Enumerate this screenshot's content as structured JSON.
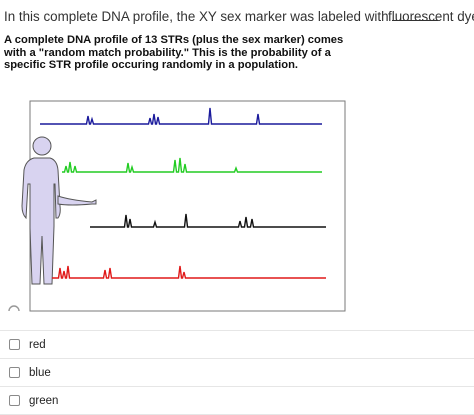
{
  "question": {
    "text_before": "In this complete DNA profile, the XY sex marker was labeled with",
    "text_after": "fluorescent dye."
  },
  "figure": {
    "caption": "A complete DNA profile of 13 STRs (plus the sex marker) comes with a \"random match probability.\"  This is the probability of a specific STR profile occuring randomly in a population.",
    "traces": [
      {
        "name": "blue-trace",
        "color": "#1a1a9c"
      },
      {
        "name": "green-trace",
        "color": "#22cc22"
      },
      {
        "name": "black-trace",
        "color": "#111111"
      },
      {
        "name": "red-trace",
        "color": "#e01818"
      }
    ],
    "figure_outline_color": "#7a7a7a",
    "human_fill_color": "#d8d3f0"
  },
  "choices": [
    {
      "label": "red"
    },
    {
      "label": "blue"
    },
    {
      "label": "green"
    }
  ]
}
